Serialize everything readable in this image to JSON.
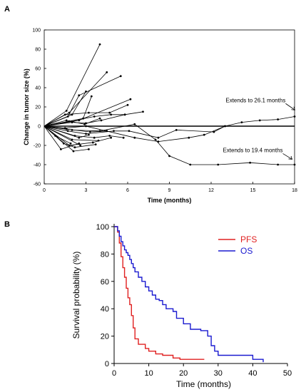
{
  "colors": {
    "pfs": "#e02020",
    "os": "#1a1ad0",
    "axis": "#000000"
  },
  "panel_a": {
    "letter": "A"
  },
  "panel_b": {
    "letter": "B"
  },
  "chart_data": [
    {
      "type": "line",
      "ylabel": "Change in tumor size (%)",
      "xlabel": "Time (months)",
      "xlim": [
        0,
        18
      ],
      "ylim": [
        -60,
        100
      ],
      "xticks": [
        0,
        3,
        6,
        9,
        12,
        15,
        18
      ],
      "yticks": [
        -60,
        -40,
        -20,
        0,
        20,
        40,
        60,
        80,
        100
      ],
      "grid": false,
      "annotations": [
        {
          "text": "Extends to 26.1 months",
          "x": 15.2,
          "y": 25
        },
        {
          "text": "Extends to 19.4 months",
          "x": 15.0,
          "y": -27
        }
      ],
      "series": [
        {
          "points": [
            [
              0,
              0
            ],
            [
              1.6,
              16
            ],
            [
              4,
              85
            ]
          ]
        },
        {
          "points": [
            [
              0,
              0
            ],
            [
              1.8,
              14
            ],
            [
              4.5,
              56
            ]
          ]
        },
        {
          "points": [
            [
              0,
              0
            ],
            [
              1.7,
              10
            ],
            [
              2.5,
              32
            ],
            [
              5.5,
              52
            ]
          ]
        },
        {
          "points": [
            [
              0,
              0
            ],
            [
              2.0,
              12
            ],
            [
              3.0,
              36
            ]
          ]
        },
        {
          "points": [
            [
              0,
              0
            ],
            [
              2.8,
              8
            ],
            [
              3.4,
              31
            ]
          ]
        },
        {
          "points": [
            [
              0,
              0
            ],
            [
              2.5,
              6
            ],
            [
              6.2,
              28
            ]
          ]
        },
        {
          "points": [
            [
              0,
              0
            ],
            [
              1.5,
              12
            ],
            [
              3.2,
              14
            ],
            [
              4.7,
              14
            ],
            [
              6.0,
              22
            ]
          ]
        },
        {
          "points": [
            [
              0,
              0
            ],
            [
              1.8,
              5
            ],
            [
              3.6,
              10
            ],
            [
              4.8,
              12
            ],
            [
              5.8,
              12
            ],
            [
              7.1,
              15
            ]
          ]
        },
        {
          "points": [
            [
              0,
              0
            ],
            [
              2.0,
              4
            ],
            [
              3.0,
              3
            ],
            [
              4.1,
              6
            ],
            [
              5.8,
              12
            ]
          ]
        },
        {
          "points": [
            [
              0,
              0
            ],
            [
              1.6,
              6
            ],
            [
              2.9,
              2
            ],
            [
              4.0,
              8
            ]
          ]
        },
        {
          "points": [
            [
              0,
              0
            ],
            [
              1.5,
              -2
            ],
            [
              3.0,
              0
            ],
            [
              6.5,
              -12
            ],
            [
              8.2,
              -16
            ],
            [
              10.4,
              -12
            ],
            [
              11.5,
              -9
            ],
            [
              13.0,
              0
            ],
            [
              14.2,
              4
            ],
            [
              15.5,
              6
            ],
            [
              16.8,
              7
            ],
            [
              18,
              10
            ]
          ]
        },
        {
          "points": [
            [
              0,
              0
            ],
            [
              2.0,
              -4
            ],
            [
              4.0,
              -5
            ],
            [
              6.5,
              2
            ],
            [
              8.0,
              -14
            ],
            [
              9.0,
              -31
            ],
            [
              10.5,
              -40
            ],
            [
              12.5,
              -40
            ],
            [
              14.8,
              -38
            ],
            [
              16.8,
              -40
            ],
            [
              18,
              -40
            ]
          ]
        },
        {
          "points": [
            [
              0,
              0
            ],
            [
              1.7,
              -5
            ],
            [
              3.0,
              -8
            ],
            [
              5.0,
              -5
            ],
            [
              6.1,
              -5
            ],
            [
              8.2,
              -12
            ],
            [
              9.5,
              -4
            ],
            [
              12.2,
              -6
            ],
            [
              13.0,
              0
            ]
          ]
        },
        {
          "points": [
            [
              0,
              0
            ],
            [
              2.2,
              -10
            ],
            [
              3.6,
              -12
            ],
            [
              4.7,
              -10
            ],
            [
              5.7,
              -12
            ]
          ]
        },
        {
          "points": [
            [
              0,
              0
            ],
            [
              1.6,
              -3
            ],
            [
              3.3,
              -6
            ],
            [
              4.5,
              -5
            ]
          ]
        },
        {
          "points": [
            [
              0,
              0
            ],
            [
              1.8,
              -20
            ],
            [
              3.5,
              -17
            ],
            [
              4.8,
              -12
            ]
          ]
        },
        {
          "points": [
            [
              0,
              0
            ],
            [
              1.4,
              -18
            ],
            [
              2.2,
              -22
            ],
            [
              3.7,
              -19
            ]
          ]
        },
        {
          "points": [
            [
              0,
              0
            ],
            [
              2.1,
              -26
            ],
            [
              3.2,
              -24
            ]
          ]
        },
        {
          "points": [
            [
              0,
              0
            ],
            [
              1.2,
              -24
            ],
            [
              2.5,
              -18
            ]
          ]
        },
        {
          "points": [
            [
              0,
              0
            ],
            [
              2.0,
              -14
            ],
            [
              3.9,
              -15
            ]
          ]
        },
        {
          "points": [
            [
              0,
              0
            ],
            [
              2.5,
              -12
            ],
            [
              3.2,
              -9
            ]
          ]
        },
        {
          "points": [
            [
              0,
              0
            ],
            [
              2.6,
              -20
            ]
          ]
        },
        {
          "points": [
            [
              0,
              0
            ],
            [
              0.8,
              -10
            ],
            [
              1.9,
              -18
            ]
          ]
        }
      ]
    },
    {
      "type": "line",
      "step": true,
      "ylabel": "Survival probability (%)",
      "xlabel": "Time (months)",
      "xlim": [
        0,
        50
      ],
      "ylim": [
        0,
        100
      ],
      "xticks": [
        0,
        10,
        20,
        30,
        40,
        50
      ],
      "yticks": [
        0,
        20,
        40,
        60,
        80,
        100
      ],
      "legend": "top-right",
      "grid": false,
      "series": [
        {
          "name": "PFS",
          "x": [
            0,
            1,
            1.5,
            2,
            2.5,
            3,
            3.5,
            4,
            4.5,
            5,
            5.5,
            6,
            7,
            8,
            9,
            10,
            12,
            14,
            17,
            19,
            24,
            26
          ],
          "y": [
            100,
            96,
            88,
            78,
            70,
            63,
            55,
            48,
            43,
            35,
            26,
            18,
            14,
            14,
            11,
            9,
            7,
            6,
            4,
            3,
            3,
            3
          ]
        },
        {
          "name": "OS",
          "x": [
            0,
            1,
            1.5,
            2,
            2.5,
            3,
            3.5,
            4,
            4.5,
            5,
            5.5,
            6,
            7,
            8,
            9,
            10,
            11,
            12,
            13,
            14,
            15,
            16,
            17,
            18,
            20,
            22,
            25,
            27,
            28,
            29,
            30,
            35,
            40,
            43
          ],
          "y": [
            100,
            97,
            93,
            89,
            86,
            83,
            81,
            79,
            76,
            73,
            70,
            67,
            63,
            60,
            56,
            53,
            50,
            47,
            46,
            43,
            40,
            40,
            38,
            33,
            29,
            25,
            24,
            20,
            13,
            9,
            6,
            6,
            3,
            1
          ]
        }
      ]
    }
  ]
}
